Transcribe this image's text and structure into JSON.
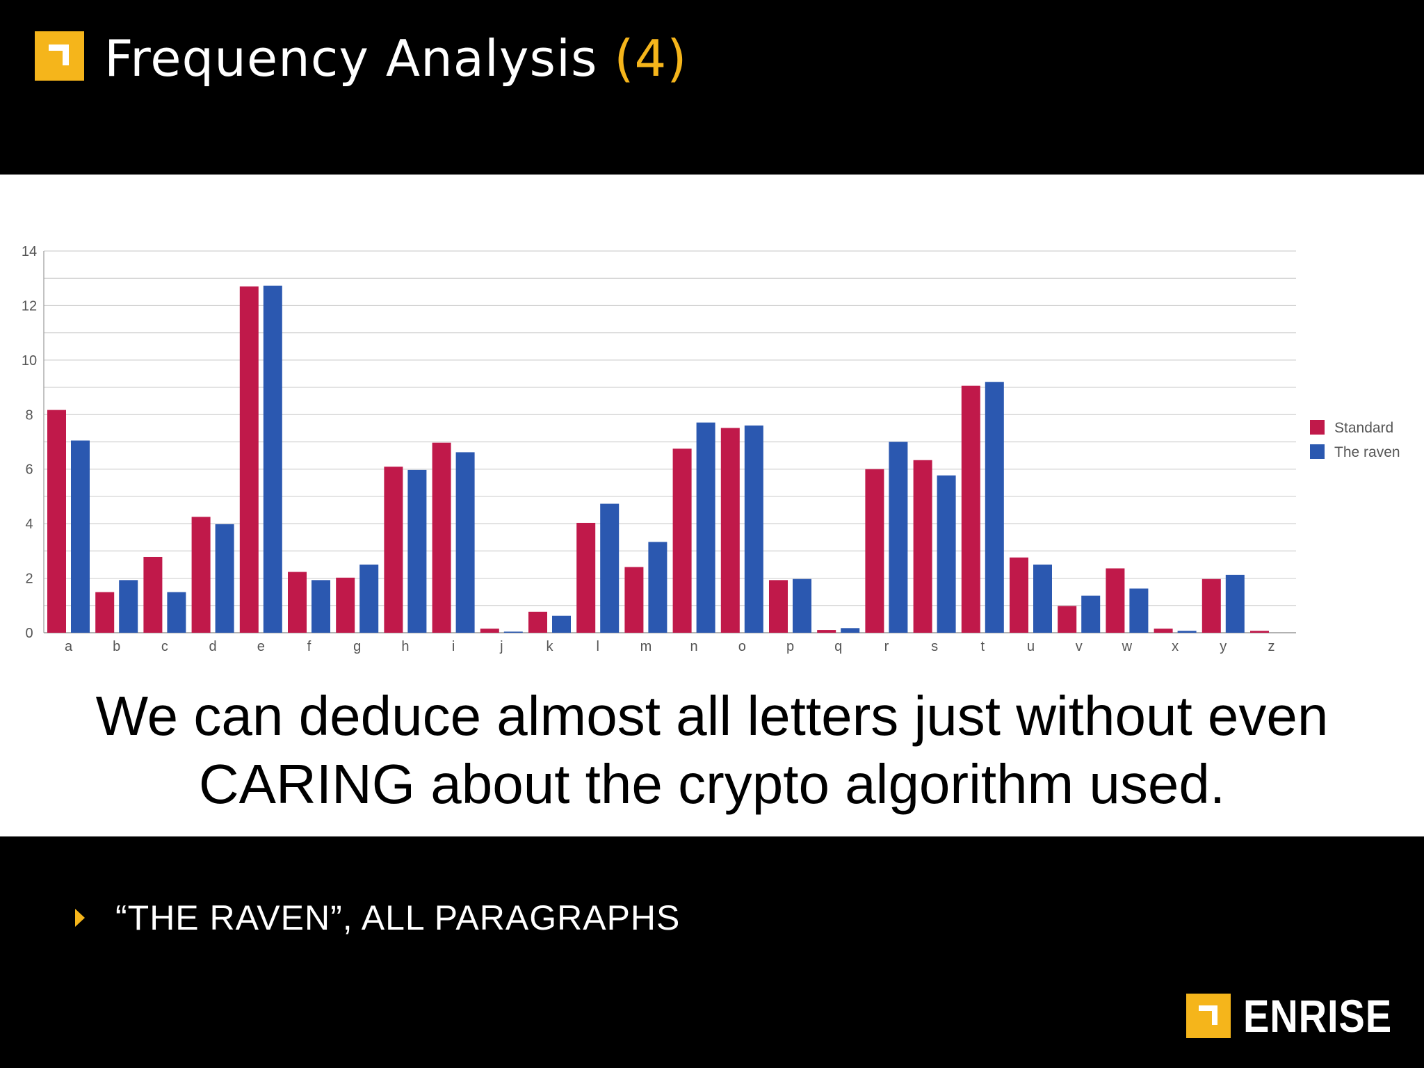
{
  "slide": {
    "title": "Frequency Analysis",
    "title_number": "(4)",
    "caption_line1": "We can deduce almost all letters just without even",
    "caption_line2": "CARING about the crypto algorithm used.",
    "bullet": "“THE RAVEN”, ALL PARAGRAPHS",
    "brand": "ENRISE",
    "colors": {
      "accent": "#f5b51b",
      "standard": "#c0194a",
      "raven": "#2b58b0"
    }
  },
  "chart_data": {
    "type": "bar",
    "categories": [
      "a",
      "b",
      "c",
      "d",
      "e",
      "f",
      "g",
      "h",
      "i",
      "j",
      "k",
      "l",
      "m",
      "n",
      "o",
      "p",
      "q",
      "r",
      "s",
      "t",
      "u",
      "v",
      "w",
      "x",
      "y",
      "z"
    ],
    "series": [
      {
        "name": "Standard",
        "color": "#c0194a",
        "values": [
          8.17,
          1.49,
          2.78,
          4.25,
          12.7,
          2.23,
          2.02,
          6.09,
          6.97,
          0.15,
          0.77,
          4.03,
          2.41,
          6.75,
          7.51,
          1.93,
          0.1,
          6.0,
          6.33,
          9.06,
          2.76,
          0.98,
          2.36,
          0.15,
          1.97,
          0.07
        ]
      },
      {
        "name": "The raven",
        "color": "#2b58b0",
        "values": [
          7.05,
          1.93,
          1.49,
          3.98,
          12.73,
          1.93,
          2.5,
          5.97,
          6.62,
          0.04,
          0.62,
          4.73,
          3.33,
          7.71,
          7.6,
          1.97,
          0.17,
          7.0,
          5.77,
          9.2,
          2.5,
          1.36,
          1.62,
          0.07,
          2.12,
          0
        ]
      }
    ],
    "yticks": [
      0,
      2,
      4,
      6,
      8,
      10,
      12,
      14
    ],
    "ylim": [
      0,
      14
    ],
    "grid": true,
    "legend_position": "right"
  }
}
